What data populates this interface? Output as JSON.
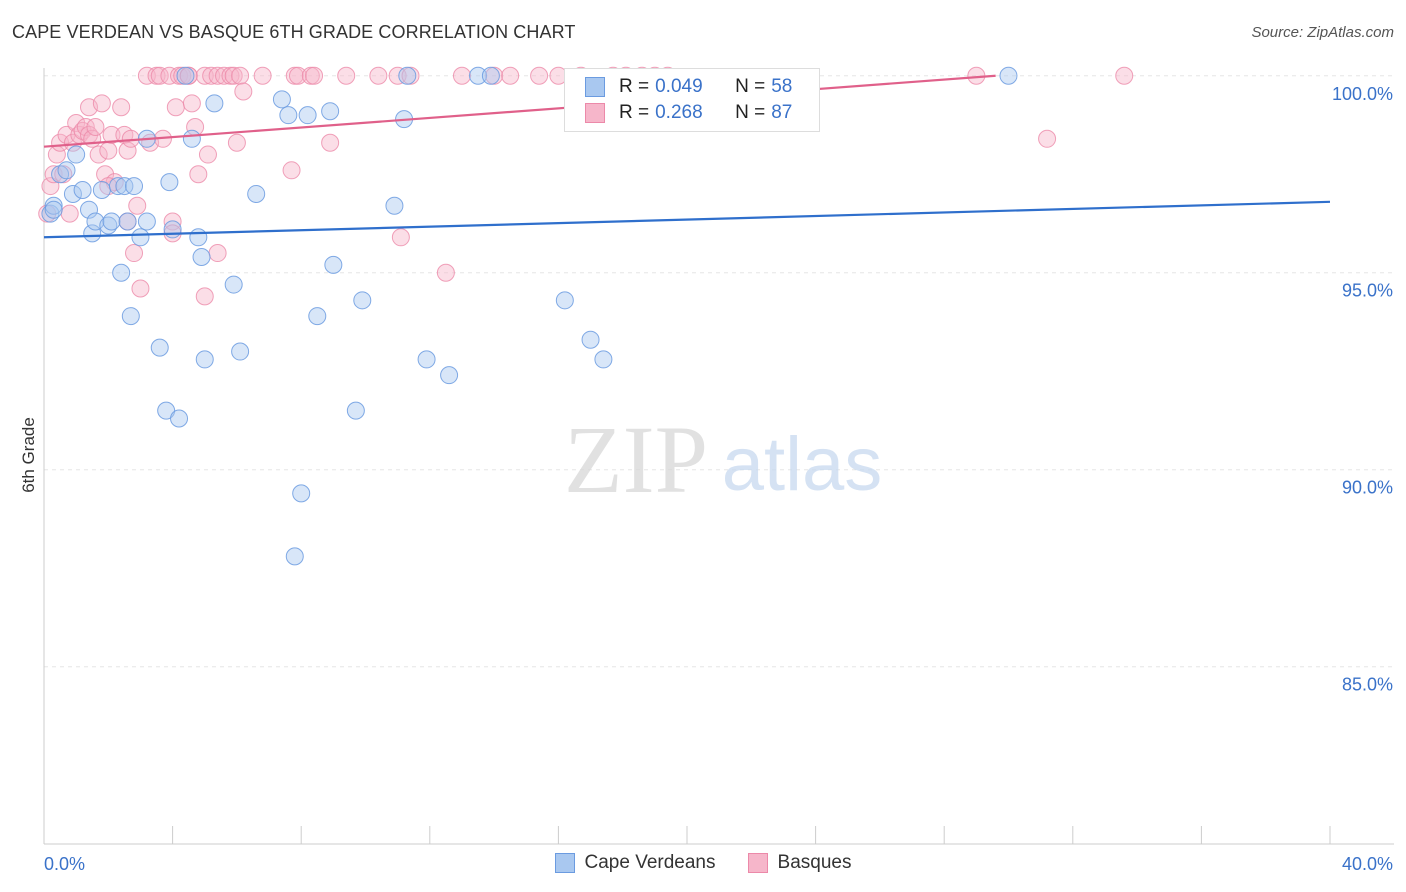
{
  "title": "CAPE VERDEAN VS BASQUE 6TH GRADE CORRELATION CHART",
  "source": "Source: ZipAtlas.com",
  "watermark": {
    "zip": "ZIP",
    "atlas": "atlas"
  },
  "legend": {
    "series1": {
      "r_label": "R =",
      "r_value": "0.049",
      "n_label": "N =",
      "n_value": "58"
    },
    "series2": {
      "r_label": "R =",
      "r_value": "0.268",
      "n_label": "N =",
      "n_value": "87"
    }
  },
  "colors": {
    "blue_fill": "#a9c8f0",
    "blue_stroke": "#6b9be0",
    "blue_line": "#2f6fcc",
    "pink_fill": "#f6b6ca",
    "pink_stroke": "#ec89a9",
    "pink_line": "#e0608a",
    "tick_label": "#3a72c9",
    "grid": "#e5e5e5"
  },
  "chart_data": {
    "type": "scatter",
    "title": "CAPE VERDEAN VS BASQUE 6TH GRADE CORRELATION CHART",
    "xlabel": "",
    "ylabel": "6th Grade",
    "xlim": [
      0,
      40
    ],
    "ylim": [
      80.5,
      100.4
    ],
    "x_tick_labels": [
      "0.0%",
      "40.0%"
    ],
    "y_ticks": [
      {
        "value": 100,
        "label": "100.0%"
      },
      {
        "value": 95,
        "label": "95.0%"
      },
      {
        "value": 90,
        "label": "90.0%"
      },
      {
        "value": 85,
        "label": "85.0%"
      }
    ],
    "series": [
      {
        "name": "Cape Verdeans",
        "r": 0.049,
        "n": 58,
        "trend": {
          "x": [
            0,
            40
          ],
          "y": [
            95.9,
            96.8
          ]
        },
        "points": [
          [
            0.2,
            96.5
          ],
          [
            0.3,
            96.7
          ],
          [
            0.5,
            97.5
          ],
          [
            0.7,
            97.6
          ],
          [
            0.9,
            97.0
          ],
          [
            1.0,
            98.0
          ],
          [
            1.2,
            97.1
          ],
          [
            1.4,
            96.6
          ],
          [
            1.5,
            96.0
          ],
          [
            1.6,
            96.3
          ],
          [
            1.8,
            97.1
          ],
          [
            2.0,
            96.2
          ],
          [
            2.1,
            96.3
          ],
          [
            2.3,
            97.2
          ],
          [
            2.4,
            95.0
          ],
          [
            2.5,
            97.2
          ],
          [
            2.6,
            96.3
          ],
          [
            2.7,
            93.9
          ],
          [
            2.8,
            97.2
          ],
          [
            3.0,
            95.9
          ],
          [
            3.2,
            96.3
          ],
          [
            3.2,
            98.4
          ],
          [
            3.6,
            93.1
          ],
          [
            3.8,
            91.5
          ],
          [
            3.9,
            97.3
          ],
          [
            4.0,
            96.1
          ],
          [
            4.2,
            91.3
          ],
          [
            4.4,
            100.0
          ],
          [
            4.6,
            98.4
          ],
          [
            4.8,
            95.9
          ],
          [
            4.9,
            95.4
          ],
          [
            5.0,
            92.8
          ],
          [
            5.3,
            99.3
          ],
          [
            5.9,
            94.7
          ],
          [
            6.1,
            93.0
          ],
          [
            6.6,
            97.0
          ],
          [
            7.4,
            99.4
          ],
          [
            7.6,
            99.0
          ],
          [
            7.8,
            87.8
          ],
          [
            8.0,
            89.4
          ],
          [
            8.2,
            99.0
          ],
          [
            8.5,
            93.9
          ],
          [
            8.9,
            99.1
          ],
          [
            9.0,
            95.2
          ],
          [
            9.7,
            91.5
          ],
          [
            9.9,
            94.3
          ],
          [
            10.9,
            96.7
          ],
          [
            11.2,
            98.9
          ],
          [
            11.3,
            100.0
          ],
          [
            11.9,
            92.8
          ],
          [
            12.6,
            92.4
          ],
          [
            13.5,
            100.0
          ],
          [
            13.9,
            100.0
          ],
          [
            16.2,
            94.3
          ],
          [
            17.0,
            93.3
          ],
          [
            17.4,
            92.8
          ],
          [
            30.0,
            100.0
          ],
          [
            0.3,
            96.6
          ]
        ]
      },
      {
        "name": "Basques",
        "r": 0.268,
        "n": 87,
        "trend": {
          "x": [
            0,
            29.6
          ],
          "y": [
            98.2,
            100.0
          ]
        },
        "points": [
          [
            0.1,
            96.5
          ],
          [
            0.2,
            97.2
          ],
          [
            0.3,
            97.5
          ],
          [
            0.4,
            98.0
          ],
          [
            0.5,
            98.3
          ],
          [
            0.6,
            97.5
          ],
          [
            0.7,
            98.5
          ],
          [
            0.8,
            96.5
          ],
          [
            0.9,
            98.3
          ],
          [
            1.0,
            98.8
          ],
          [
            1.1,
            98.5
          ],
          [
            1.2,
            98.6
          ],
          [
            1.3,
            98.7
          ],
          [
            1.4,
            98.5
          ],
          [
            1.4,
            99.2
          ],
          [
            1.5,
            98.4
          ],
          [
            1.6,
            98.7
          ],
          [
            1.7,
            98.0
          ],
          [
            1.8,
            99.3
          ],
          [
            1.9,
            97.5
          ],
          [
            2.0,
            98.1
          ],
          [
            2.1,
            98.5
          ],
          [
            2.2,
            97.3
          ],
          [
            2.4,
            99.2
          ],
          [
            2.5,
            98.5
          ],
          [
            2.6,
            98.1
          ],
          [
            2.6,
            96.3
          ],
          [
            2.7,
            98.4
          ],
          [
            2.8,
            95.5
          ],
          [
            2.9,
            96.7
          ],
          [
            3.0,
            94.6
          ],
          [
            3.2,
            100.0
          ],
          [
            3.3,
            98.3
          ],
          [
            3.5,
            100.0
          ],
          [
            3.6,
            100.0
          ],
          [
            3.7,
            98.4
          ],
          [
            3.9,
            100.0
          ],
          [
            4.0,
            96.3
          ],
          [
            4.0,
            96.0
          ],
          [
            4.1,
            99.2
          ],
          [
            4.2,
            100.0
          ],
          [
            4.3,
            100.0
          ],
          [
            4.5,
            100.0
          ],
          [
            4.6,
            99.3
          ],
          [
            4.7,
            98.7
          ],
          [
            4.8,
            97.5
          ],
          [
            5.0,
            100.0
          ],
          [
            5.0,
            94.4
          ],
          [
            5.1,
            98.0
          ],
          [
            5.2,
            100.0
          ],
          [
            5.4,
            100.0
          ],
          [
            5.4,
            95.5
          ],
          [
            5.6,
            100.0
          ],
          [
            5.8,
            100.0
          ],
          [
            5.9,
            100.0
          ],
          [
            6.0,
            98.3
          ],
          [
            6.1,
            100.0
          ],
          [
            6.2,
            99.6
          ],
          [
            6.8,
            100.0
          ],
          [
            7.7,
            97.6
          ],
          [
            7.8,
            100.0
          ],
          [
            7.9,
            100.0
          ],
          [
            8.3,
            100.0
          ],
          [
            8.4,
            100.0
          ],
          [
            8.9,
            98.3
          ],
          [
            9.4,
            100.0
          ],
          [
            10.4,
            100.0
          ],
          [
            11.0,
            100.0
          ],
          [
            11.1,
            95.9
          ],
          [
            11.4,
            100.0
          ],
          [
            12.5,
            95.0
          ],
          [
            13.0,
            100.0
          ],
          [
            14.0,
            100.0
          ],
          [
            14.5,
            100.0
          ],
          [
            15.4,
            100.0
          ],
          [
            16.0,
            100.0
          ],
          [
            16.7,
            100.0
          ],
          [
            17.7,
            100.0
          ],
          [
            18.1,
            100.0
          ],
          [
            18.6,
            100.0
          ],
          [
            19.0,
            100.0
          ],
          [
            19.4,
            100.0
          ],
          [
            29.0,
            100.0
          ],
          [
            31.2,
            98.4
          ],
          [
            33.6,
            100.0
          ],
          [
            4.5,
            100.0
          ],
          [
            2.0,
            97.2
          ]
        ]
      }
    ]
  }
}
